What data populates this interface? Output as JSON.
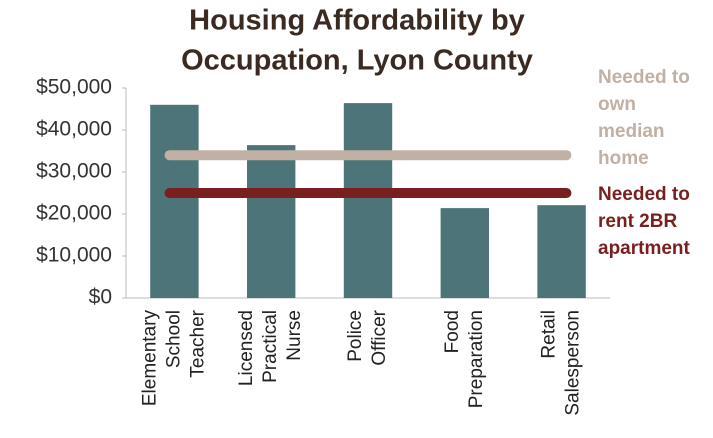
{
  "chart_data": {
    "type": "bar",
    "title": [
      "Housing Affordability by",
      "Occupation, Lyon County"
    ],
    "categories": [
      [
        "Elementary",
        "School",
        "Teacher"
      ],
      [
        "Licensed",
        "Practical",
        "Nurse"
      ],
      [
        "Police",
        "Officer"
      ],
      [
        "Food",
        "Preparation"
      ],
      [
        "Retail",
        "Salesperson"
      ]
    ],
    "values": [
      46000,
      36400,
      46400,
      21400,
      22100
    ],
    "color": "#4d7579",
    "ylim": [
      0,
      50000
    ],
    "yticks": [
      {
        "value": 0,
        "label": "$0"
      },
      {
        "value": 10000,
        "label": "$10,000"
      },
      {
        "value": 20000,
        "label": "$20,000"
      },
      {
        "value": 30000,
        "label": "$30,000"
      },
      {
        "value": 40000,
        "label": "$40,000"
      },
      {
        "value": 50000,
        "label": "$50,000"
      }
    ],
    "grid": false,
    "reference_lines": [
      {
        "name": [
          "Needed to",
          "own",
          "median",
          "home"
        ],
        "value": 34000,
        "color": "#c0b0a5"
      },
      {
        "name": [
          "Needed to",
          "rent 2BR",
          "apartment"
        ],
        "value": 25000,
        "color": "#7a1f1f"
      }
    ]
  }
}
